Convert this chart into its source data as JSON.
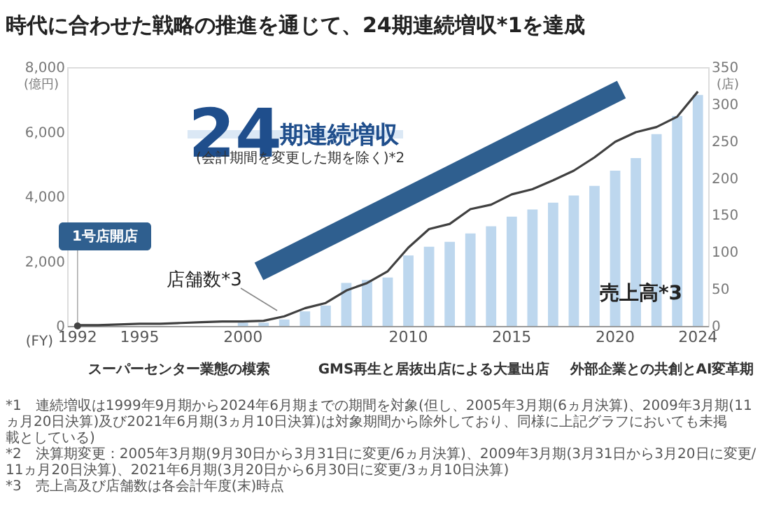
{
  "chart_data": {
    "type": "bar",
    "title": "時代に合わせた戦略の推進を通じて、24期連続増収*1を達成",
    "xlabel": "(FY)",
    "ylabel": "(億円)",
    "y2label": "(店)",
    "categories": [
      "1992",
      null,
      null,
      "1995",
      null,
      null,
      null,
      null,
      "2000",
      null,
      null,
      null,
      null,
      null,
      null,
      null,
      "2010",
      null,
      null,
      null,
      null,
      "2015",
      null,
      null,
      null,
      null,
      "2020",
      null,
      null,
      null,
      "2024"
    ],
    "series": [
      {
        "name": "売上高*3",
        "color": "#bdd7ee",
        "values": [
          0,
          0,
          0,
          0,
          0,
          null,
          null,
          null,
          100,
          100,
          200,
          450,
          630,
          1330,
          1420,
          1500,
          2180,
          2450,
          2600,
          2860,
          3080,
          3380,
          3600,
          3810,
          4030,
          4330,
          4800,
          5190,
          5930,
          6490,
          7140
        ]
      },
      {
        "name": "店舗数*3",
        "type": "line",
        "axis": "y2",
        "color": "#404040",
        "values": [
          1,
          1,
          2,
          3,
          3,
          4,
          5,
          6,
          6,
          7,
          13,
          24,
          31,
          48,
          58,
          74,
          106,
          131,
          138,
          158,
          164,
          178,
          185,
          197,
          210,
          228,
          249,
          262,
          269,
          283,
          317
        ]
      }
    ],
    "ylim": [
      0,
      8000
    ],
    "yticks": [
      0,
      {
        "value": 2000,
        "label": "2,000"
      },
      {
        "value": 4000,
        "label": "4,000"
      },
      {
        "value": 6000,
        "label": "6,000"
      },
      {
        "value": 8000,
        "label": "8,000"
      }
    ],
    "y2lim": [
      0,
      350
    ],
    "y2ticks": [
      0,
      50,
      100,
      150,
      200,
      250,
      300,
      350
    ],
    "annotations": [
      "24",
      "期連続増収",
      "(会計期間を変更した期を除く)*2",
      {
        "text": "1号店開店",
        "x": "1992",
        "y": 0
      },
      "スーパーセンター業態の模索",
      "GMS再生と居抜出店による大量出店",
      "外部企業との共創とAI変革期",
      "*1　連続増収は1999年9月期から2024年6月期までの期間を対象(但し、2005年3月期(6ヵ月決算)、2009年3月期(11ヵ月20日決算)及び2021年6月期(3ヵ月10日決算)は対象期間から除外しており、同様に上記グラフにおいても未掲載としている)",
      "*2　決算期変更：2005年3月期(9月30日から3月31日に変更/6ヵ月決算)、2009年3月期(3月31日から3月20日に変更/11ヵ月20日決算)、2021年6月期(3月20日から6月30日に変更/3ヵ月10日決算)",
      "*3　売上高及び店舗数は各会計年度(末)時点"
    ]
  }
}
